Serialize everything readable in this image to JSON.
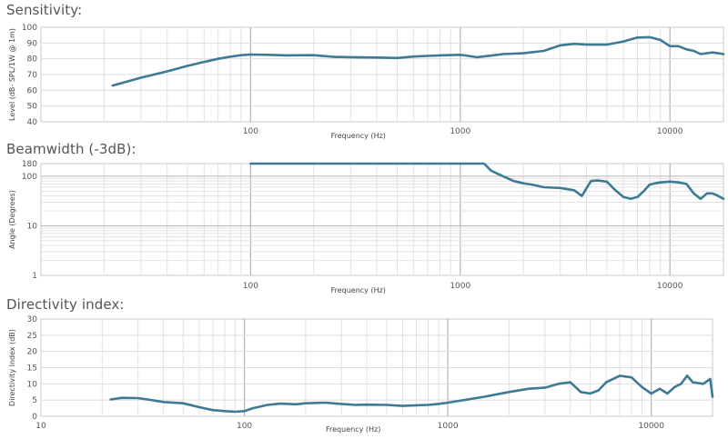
{
  "chart_data": [
    {
      "type": "line",
      "title": "Sensitivity:",
      "xlabel": "Frequency (Hz)",
      "ylabel": "Level (dB- SPL/1W @ 1m)",
      "xscale": "log",
      "yscale": "linear",
      "xlim": [
        10,
        18000
      ],
      "ylim": [
        40,
        100
      ],
      "xticks": [
        {
          "value": 100,
          "label": "100"
        },
        {
          "value": 1000,
          "label": "1000"
        },
        {
          "value": 10000,
          "label": "10000"
        }
      ],
      "yticks": [
        {
          "value": 40,
          "label": "40"
        },
        {
          "value": 50,
          "label": "50"
        },
        {
          "value": 60,
          "label": "60"
        },
        {
          "value": 70,
          "label": "70"
        },
        {
          "value": 80,
          "label": "80"
        },
        {
          "value": 90,
          "label": "90"
        },
        {
          "value": 100,
          "label": "100"
        }
      ],
      "grid": true,
      "color": "#3d7a96",
      "x": [
        22,
        30,
        40,
        50,
        60,
        70,
        80,
        90,
        100,
        120,
        150,
        200,
        250,
        300,
        400,
        500,
        600,
        700,
        800,
        1000,
        1200,
        1400,
        1600,
        2000,
        2500,
        3000,
        3500,
        4000,
        5000,
        6000,
        7000,
        8000,
        9000,
        10000,
        11000,
        12000,
        13000,
        14000,
        16000,
        18000
      ],
      "y": [
        63,
        68,
        72,
        75.5,
        78,
        80,
        81.3,
        82.3,
        82.7,
        82.5,
        82.2,
        82.3,
        81.2,
        81.0,
        80.8,
        80.5,
        81.4,
        81.8,
        82.2,
        82.5,
        81.0,
        82.0,
        83.0,
        83.5,
        85.0,
        88.5,
        89.5,
        89.0,
        89.0,
        91.0,
        93.5,
        93.7,
        92.0,
        88.0,
        88.0,
        86.0,
        85.0,
        83.0,
        84.0,
        83.0
      ]
    },
    {
      "type": "line",
      "title": "Beamwidth (-3dB):",
      "xlabel": "Frequency (Hz)",
      "ylabel": "Angle (Degrees)",
      "xscale": "log",
      "yscale": "log",
      "xlim": [
        10,
        18000
      ],
      "ylim": [
        1,
        180
      ],
      "xticks": [
        {
          "value": 100,
          "label": "100"
        },
        {
          "value": 1000,
          "label": "1000"
        },
        {
          "value": 10000,
          "label": "10000"
        }
      ],
      "yticks": [
        {
          "value": 1,
          "label": "1"
        },
        {
          "value": 10,
          "label": "10"
        },
        {
          "value": 100,
          "label": "100"
        },
        {
          "value": 180,
          "label": "180"
        }
      ],
      "grid": true,
      "color": "#3d7a96",
      "x": [
        100,
        200,
        400,
        800,
        1000,
        1200,
        1300,
        1400,
        1600,
        1800,
        2000,
        2200,
        2500,
        3000,
        3500,
        3800,
        4200,
        4500,
        5000,
        5500,
        6000,
        6500,
        7000,
        7500,
        8000,
        8500,
        9000,
        10000,
        11000,
        12000,
        13000,
        14000,
        15000,
        16000,
        17000,
        18000
      ],
      "y": [
        180,
        180,
        180,
        180,
        180,
        180,
        180,
        130,
        100,
        80,
        72,
        68,
        60,
        58,
        52,
        40,
        80,
        82,
        78,
        52,
        38,
        35,
        38,
        50,
        68,
        72,
        75,
        78,
        75,
        70,
        45,
        35,
        45,
        45,
        40,
        35
      ]
    },
    {
      "type": "line",
      "title": "Directivity index:",
      "xlabel": "Frequency (Hz)",
      "ylabel": "Directivity Index (dB)",
      "xscale": "log",
      "yscale": "linear",
      "xlim": [
        10,
        20000
      ],
      "ylim": [
        0,
        30
      ],
      "xticks": [
        {
          "value": 10,
          "label": "10"
        },
        {
          "value": 100,
          "label": "100"
        },
        {
          "value": 1000,
          "label": "1000"
        },
        {
          "value": 10000,
          "label": "10000"
        }
      ],
      "yticks": [
        {
          "value": 0,
          "label": "0"
        },
        {
          "value": 5,
          "label": "5"
        },
        {
          "value": 10,
          "label": "10"
        },
        {
          "value": 15,
          "label": "15"
        },
        {
          "value": 20,
          "label": "20"
        },
        {
          "value": 25,
          "label": "25"
        },
        {
          "value": 30,
          "label": "30"
        }
      ],
      "grid": true,
      "color": "#3d7a96",
      "x": [
        22,
        25,
        30,
        35,
        40,
        50,
        60,
        70,
        80,
        90,
        100,
        110,
        130,
        150,
        180,
        200,
        250,
        300,
        350,
        400,
        500,
        600,
        700,
        800,
        900,
        1000,
        1200,
        1500,
        2000,
        2500,
        3000,
        3500,
        4000,
        4500,
        5000,
        5500,
        6000,
        7000,
        8000,
        9000,
        10000,
        11000,
        12000,
        13000,
        14000,
        15000,
        16000,
        18000,
        19500,
        20000
      ],
      "y": [
        5.2,
        5.7,
        5.6,
        5.0,
        4.4,
        4.0,
        2.8,
        1.9,
        1.6,
        1.4,
        1.6,
        2.5,
        3.5,
        3.9,
        3.7,
        4.0,
        4.2,
        3.8,
        3.5,
        3.6,
        3.5,
        3.2,
        3.4,
        3.5,
        3.8,
        4.2,
        5.0,
        6.0,
        7.5,
        8.5,
        8.8,
        10.0,
        10.5,
        7.5,
        7.0,
        8.0,
        10.5,
        12.5,
        12.0,
        9.0,
        7.0,
        8.5,
        7.0,
        9.0,
        10.0,
        12.5,
        10.5,
        10.0,
        11.5,
        6.0
      ]
    }
  ]
}
